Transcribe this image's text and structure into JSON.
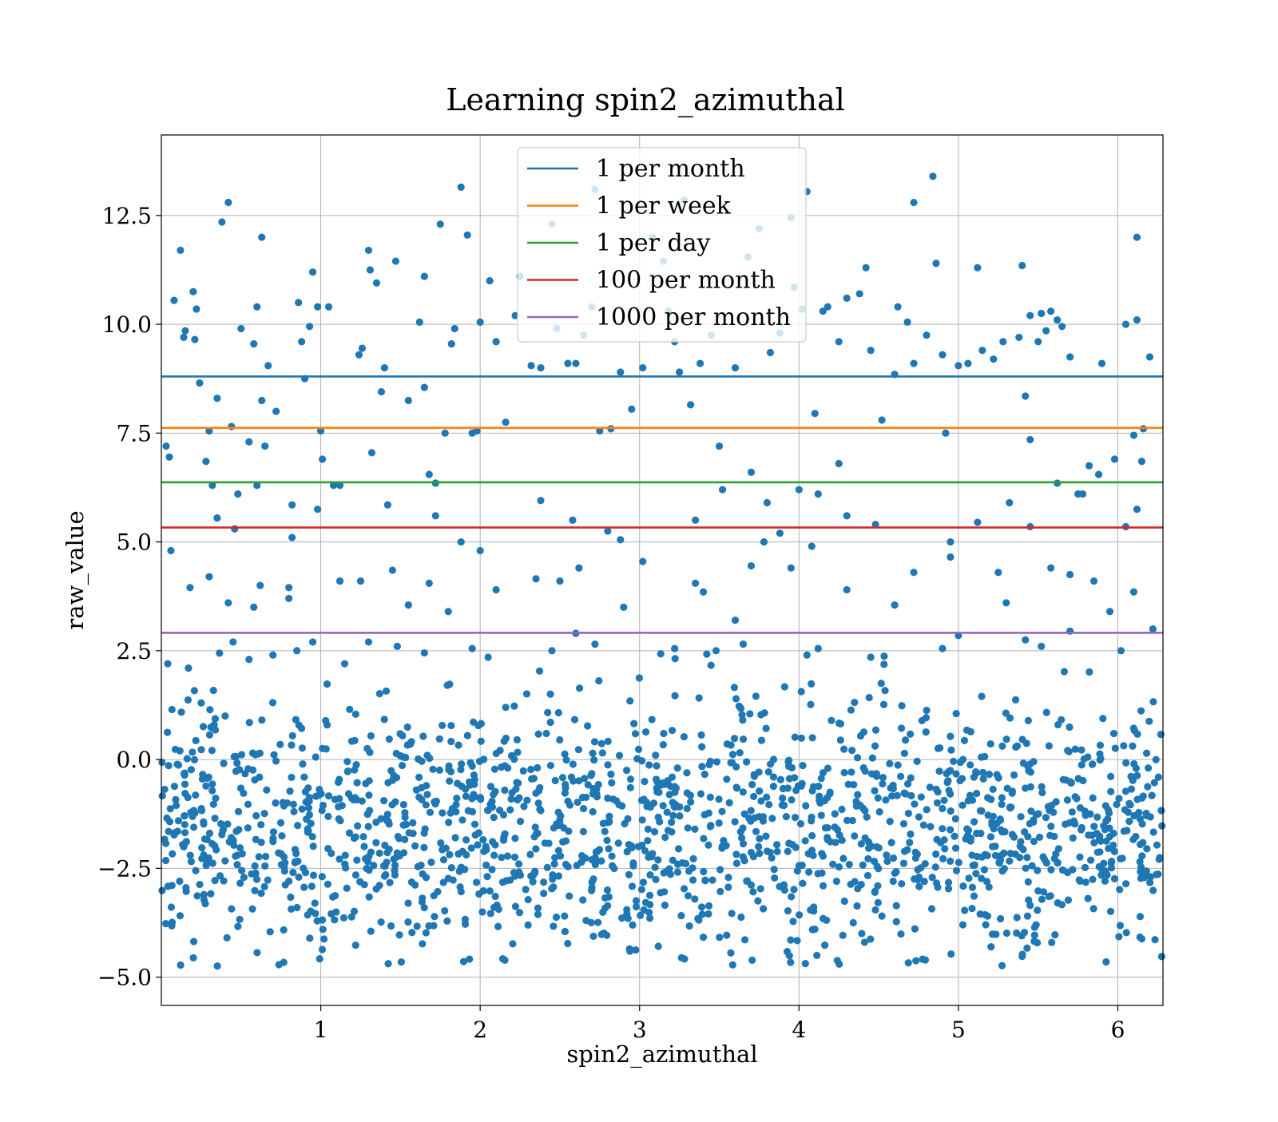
{
  "chart_data": {
    "type": "scatter",
    "title": "Learning spin2_azimuthal",
    "xlabel": "spin2_azimuthal",
    "ylabel": "raw_value",
    "xlim": [
      0,
      6.2832
    ],
    "ylim": [
      -5.65,
      14.35
    ],
    "xticks": [
      1,
      2,
      3,
      4,
      5,
      6
    ],
    "xtick_labels": [
      "1",
      "2",
      "3",
      "4",
      "5",
      "6"
    ],
    "yticks": [
      -5.0,
      -2.5,
      0.0,
      2.5,
      5.0,
      7.5,
      10.0,
      12.5
    ],
    "ytick_labels": [
      "−5.0",
      "−2.5",
      "0.0",
      "2.5",
      "5.0",
      "7.5",
      "10.0",
      "12.5"
    ],
    "grid": true,
    "legend_position": "top-center",
    "point_color": "#1f77b4",
    "reference_lines": [
      {
        "name": "1 per month",
        "y": 8.8,
        "color": "#1f77b4"
      },
      {
        "name": "1 per week",
        "y": 7.62,
        "color": "#ff7f0e"
      },
      {
        "name": "1 per day",
        "y": 6.37,
        "color": "#2ca02c"
      },
      {
        "name": "100 per month",
        "y": 5.33,
        "color": "#d62728"
      },
      {
        "name": "1000 per month",
        "y": 2.91,
        "color": "#9467bd"
      }
    ],
    "points": [
      [
        0.03,
        7.2
      ],
      [
        0.05,
        6.95
      ],
      [
        0.06,
        4.8
      ],
      [
        0.04,
        2.2
      ],
      [
        0.08,
        10.55
      ],
      [
        0.12,
        11.7
      ],
      [
        0.15,
        9.85
      ],
      [
        0.14,
        9.7
      ],
      [
        0.18,
        3.95
      ],
      [
        0.2,
        10.75
      ],
      [
        0.22,
        10.35
      ],
      [
        0.21,
        9.65
      ],
      [
        0.24,
        8.65
      ],
      [
        0.28,
        6.85
      ],
      [
        0.3,
        7.55
      ],
      [
        0.32,
        6.3
      ],
      [
        0.35,
        8.3
      ],
      [
        0.38,
        12.35
      ],
      [
        0.42,
        12.8
      ],
      [
        0.44,
        7.65
      ],
      [
        0.46,
        5.3
      ],
      [
        0.48,
        6.1
      ],
      [
        0.5,
        9.9
      ],
      [
        0.55,
        7.3
      ],
      [
        0.58,
        9.55
      ],
      [
        0.6,
        10.4
      ],
      [
        0.63,
        8.25
      ],
      [
        0.63,
        12.0
      ],
      [
        0.65,
        7.2
      ],
      [
        0.67,
        9.05
      ],
      [
        0.72,
        8.0
      ],
      [
        0.8,
        3.95
      ],
      [
        0.82,
        5.85
      ],
      [
        0.86,
        10.5
      ],
      [
        0.88,
        9.6
      ],
      [
        0.9,
        8.75
      ],
      [
        0.93,
        9.95
      ],
      [
        0.95,
        11.2
      ],
      [
        0.98,
        10.4
      ],
      [
        1.0,
        7.55
      ],
      [
        1.01,
        6.9
      ],
      [
        1.05,
        10.4
      ],
      [
        1.08,
        6.3
      ],
      [
        1.12,
        4.1
      ],
      [
        1.24,
        9.3
      ],
      [
        1.26,
        9.45
      ],
      [
        1.3,
        11.7
      ],
      [
        1.31,
        11.25
      ],
      [
        1.32,
        7.05
      ],
      [
        1.35,
        10.95
      ],
      [
        1.38,
        8.45
      ],
      [
        1.4,
        9.0
      ],
      [
        1.47,
        11.45
      ],
      [
        1.55,
        8.25
      ],
      [
        1.62,
        10.05
      ],
      [
        1.65,
        11.1
      ],
      [
        1.65,
        8.55
      ],
      [
        1.68,
        6.55
      ],
      [
        1.75,
        12.3
      ],
      [
        1.78,
        7.5
      ],
      [
        1.82,
        9.55
      ],
      [
        1.84,
        9.9
      ],
      [
        1.88,
        13.15
      ],
      [
        1.92,
        12.05
      ],
      [
        1.95,
        7.5
      ],
      [
        1.98,
        7.55
      ],
      [
        2.0,
        10.05
      ],
      [
        2.06,
        11.0
      ],
      [
        2.1,
        9.6
      ],
      [
        2.16,
        7.75
      ],
      [
        2.22,
        10.2
      ],
      [
        2.25,
        11.1
      ],
      [
        2.32,
        9.05
      ],
      [
        2.38,
        9.0
      ],
      [
        2.45,
        12.3
      ],
      [
        2.48,
        9.9
      ],
      [
        2.55,
        9.1
      ],
      [
        2.6,
        9.1
      ],
      [
        2.65,
        9.75
      ],
      [
        2.7,
        10.4
      ],
      [
        2.72,
        13.1
      ],
      [
        2.75,
        7.55
      ],
      [
        2.82,
        7.6
      ],
      [
        2.88,
        8.9
      ],
      [
        2.95,
        8.05
      ],
      [
        3.02,
        9.0
      ],
      [
        3.08,
        12.0
      ],
      [
        3.15,
        11.45
      ],
      [
        3.18,
        10.3
      ],
      [
        3.22,
        9.6
      ],
      [
        3.25,
        8.9
      ],
      [
        3.28,
        12.85
      ],
      [
        3.32,
        8.15
      ],
      [
        3.38,
        9.1
      ],
      [
        3.45,
        9.75
      ],
      [
        3.5,
        7.2
      ],
      [
        3.6,
        9.0
      ],
      [
        3.68,
        11.55
      ],
      [
        3.75,
        12.2
      ],
      [
        3.82,
        9.35
      ],
      [
        3.88,
        9.8
      ],
      [
        3.95,
        12.45
      ],
      [
        3.97,
        10.85
      ],
      [
        4.02,
        10.35
      ],
      [
        4.05,
        13.05
      ],
      [
        4.1,
        7.95
      ],
      [
        4.15,
        10.3
      ],
      [
        4.18,
        10.4
      ],
      [
        4.25,
        9.6
      ],
      [
        4.3,
        10.6
      ],
      [
        4.38,
        10.7
      ],
      [
        4.42,
        11.3
      ],
      [
        4.45,
        9.4
      ],
      [
        4.52,
        7.8
      ],
      [
        4.6,
        8.85
      ],
      [
        4.62,
        10.4
      ],
      [
        4.68,
        10.05
      ],
      [
        4.72,
        12.8
      ],
      [
        4.72,
        9.1
      ],
      [
        4.8,
        9.75
      ],
      [
        4.84,
        13.4
      ],
      [
        4.86,
        11.4
      ],
      [
        4.9,
        9.3
      ],
      [
        4.92,
        7.5
      ],
      [
        5.0,
        9.05
      ],
      [
        5.06,
        9.1
      ],
      [
        5.12,
        11.3
      ],
      [
        5.15,
        9.4
      ],
      [
        5.22,
        9.2
      ],
      [
        5.28,
        9.6
      ],
      [
        5.38,
        9.7
      ],
      [
        5.4,
        11.35
      ],
      [
        5.42,
        8.35
      ],
      [
        5.45,
        10.2
      ],
      [
        5.5,
        9.6
      ],
      [
        5.52,
        10.25
      ],
      [
        5.55,
        9.85
      ],
      [
        5.58,
        10.3
      ],
      [
        5.62,
        10.1
      ],
      [
        5.65,
        9.95
      ],
      [
        5.7,
        9.25
      ],
      [
        5.75,
        6.1
      ],
      [
        5.82,
        6.75
      ],
      [
        5.88,
        6.55
      ],
      [
        5.9,
        9.1
      ],
      [
        5.98,
        6.9
      ],
      [
        6.05,
        10.0
      ],
      [
        6.1,
        7.45
      ],
      [
        6.12,
        12.0
      ],
      [
        6.12,
        10.1
      ],
      [
        6.16,
        7.6
      ],
      [
        6.2,
        9.25
      ],
      [
        6.15,
        6.85
      ],
      [
        0.17,
        2.1
      ],
      [
        0.25,
        1.3
      ],
      [
        0.4,
        1.0
      ],
      [
        0.45,
        2.7
      ],
      [
        0.55,
        2.3
      ],
      [
        0.7,
        2.4
      ],
      [
        0.85,
        2.5
      ],
      [
        0.95,
        2.7
      ],
      [
        1.15,
        2.2
      ],
      [
        1.3,
        2.7
      ],
      [
        1.48,
        2.6
      ],
      [
        1.65,
        2.45
      ],
      [
        1.95,
        2.55
      ],
      [
        2.05,
        2.35
      ],
      [
        2.45,
        2.5
      ],
      [
        2.6,
        2.9
      ],
      [
        2.72,
        2.65
      ],
      [
        3.22,
        2.55
      ],
      [
        3.48,
        2.5
      ],
      [
        3.6,
        3.2
      ],
      [
        3.65,
        2.65
      ],
      [
        4.05,
        2.4
      ],
      [
        4.12,
        2.55
      ],
      [
        4.45,
        2.35
      ],
      [
        4.9,
        2.55
      ],
      [
        5.0,
        2.85
      ],
      [
        5.42,
        2.75
      ],
      [
        5.52,
        2.6
      ],
      [
        5.7,
        2.95
      ],
      [
        6.02,
        2.5
      ],
      [
        6.22,
        3.0
      ],
      [
        0.3,
        4.2
      ],
      [
        0.42,
        3.6
      ],
      [
        0.58,
        3.5
      ],
      [
        0.62,
        4.0
      ],
      [
        0.8,
        3.7
      ],
      [
        1.25,
        4.1
      ],
      [
        1.45,
        4.35
      ],
      [
        1.55,
        3.55
      ],
      [
        1.68,
        4.05
      ],
      [
        1.8,
        3.4
      ],
      [
        2.1,
        3.9
      ],
      [
        2.35,
        4.15
      ],
      [
        2.5,
        4.1
      ],
      [
        2.62,
        4.4
      ],
      [
        2.9,
        3.5
      ],
      [
        3.02,
        4.55
      ],
      [
        3.35,
        4.05
      ],
      [
        3.4,
        3.85
      ],
      [
        3.7,
        4.45
      ],
      [
        3.78,
        5.0
      ],
      [
        3.88,
        5.2
      ],
      [
        3.95,
        4.4
      ],
      [
        4.08,
        4.9
      ],
      [
        4.3,
        3.9
      ],
      [
        4.6,
        3.55
      ],
      [
        4.72,
        4.3
      ],
      [
        4.95,
        4.65
      ],
      [
        5.25,
        4.3
      ],
      [
        5.3,
        3.6
      ],
      [
        5.58,
        4.4
      ],
      [
        5.7,
        4.25
      ],
      [
        5.85,
        4.1
      ],
      [
        5.95,
        3.4
      ],
      [
        6.1,
        3.85
      ],
      [
        0.35,
        5.55
      ],
      [
        0.82,
        5.1
      ],
      [
        0.98,
        5.75
      ],
      [
        1.12,
        6.3
      ],
      [
        1.42,
        5.85
      ],
      [
        1.72,
        5.6
      ],
      [
        1.88,
        5.0
      ],
      [
        2.0,
        4.8
      ],
      [
        2.38,
        5.95
      ],
      [
        2.58,
        5.5
      ],
      [
        2.88,
        5.05
      ],
      [
        3.35,
        5.5
      ],
      [
        3.52,
        6.2
      ],
      [
        3.8,
        5.9
      ],
      [
        4.0,
        6.2
      ],
      [
        4.12,
        6.1
      ],
      [
        4.3,
        5.6
      ],
      [
        4.48,
        5.4
      ],
      [
        4.95,
        5.0
      ],
      [
        5.12,
        5.45
      ],
      [
        5.32,
        5.9
      ],
      [
        5.45,
        5.35
      ],
      [
        5.62,
        6.35
      ],
      [
        5.78,
        6.1
      ],
      [
        6.12,
        5.75
      ],
      [
        6.05,
        5.35
      ],
      [
        0.6,
        6.3
      ],
      [
        1.72,
        6.35
      ],
      [
        2.8,
        5.25
      ],
      [
        3.7,
        6.6
      ],
      [
        4.25,
        6.8
      ],
      [
        5.45,
        7.35
      ]
    ],
    "cloud": {
      "count": 1700,
      "x_range": [
        0,
        6.28
      ],
      "center": -1.5,
      "spread": 1.45,
      "y_range": [
        -4.75,
        2.5
      ]
    }
  }
}
